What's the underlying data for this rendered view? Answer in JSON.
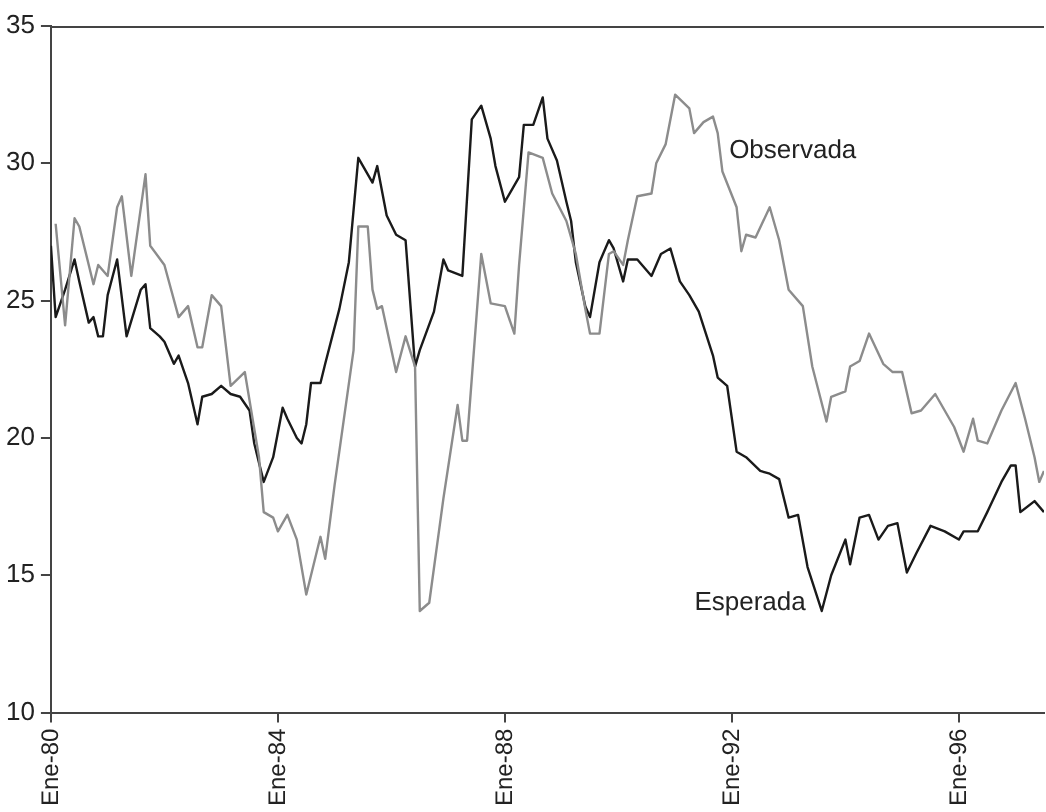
{
  "chart_data": {
    "type": "line",
    "xlim": [
      "1980-01",
      "1997-07"
    ],
    "xticks": [
      {
        "value": "1980-01",
        "label": "Ene-80"
      },
      {
        "value": "1984-01",
        "label": "Ene-84"
      },
      {
        "value": "1988-01",
        "label": "Ene-88"
      },
      {
        "value": "1992-01",
        "label": "Ene-92"
      },
      {
        "value": "1996-01",
        "label": "Ene-96"
      }
    ],
    "ylim": [
      10,
      35
    ],
    "yticks": [
      10,
      15,
      20,
      25,
      30,
      35
    ],
    "grid": false,
    "legend": false,
    "marker": "none",
    "line_style": "solid",
    "series": [
      {
        "name": "Observada",
        "color": "#8c8c8c",
        "x": [
          "1980-02",
          "1980-04",
          "1980-06",
          "1980-07",
          "1980-10",
          "1980-11",
          "1981-01",
          "1981-03",
          "1981-04",
          "1981-06",
          "1981-09",
          "1981-10",
          "1982-01",
          "1982-04",
          "1982-06",
          "1982-08",
          "1982-09",
          "1982-11",
          "1983-01",
          "1983-03",
          "1983-06",
          "1983-09",
          "1983-10",
          "1983-12",
          "1984-01",
          "1984-03",
          "1984-05",
          "1984-07",
          "1984-10",
          "1984-11",
          "1985-01",
          "1985-05",
          "1985-06",
          "1985-08",
          "1985-09",
          "1985-10",
          "1985-11",
          "1986-02",
          "1986-04",
          "1986-06",
          "1986-07",
          "1986-09",
          "1986-12",
          "1987-03",
          "1987-04",
          "1987-05",
          "1987-08",
          "1987-10",
          "1988-01",
          "1988-03",
          "1988-04",
          "1988-06",
          "1988-09",
          "1988-11",
          "1989-02",
          "1989-04",
          "1989-06",
          "1989-07",
          "1989-09",
          "1989-11",
          "1989-12",
          "1990-02",
          "1990-03",
          "1990-05",
          "1990-08",
          "1990-09",
          "1990-11",
          "1991-01",
          "1991-04",
          "1991-05",
          "1991-07",
          "1991-09",
          "1991-10",
          "1991-11",
          "1992-02",
          "1992-03",
          "1992-04",
          "1992-06",
          "1992-09",
          "1992-11",
          "1993-01",
          "1993-04",
          "1993-06",
          "1993-09",
          "1993-10",
          "1994-01",
          "1994-02",
          "1994-04",
          "1994-06",
          "1994-09",
          "1994-11",
          "1995-01",
          "1995-03",
          "1995-05",
          "1995-08",
          "1995-10",
          "1995-12",
          "1996-02",
          "1996-04",
          "1996-05",
          "1996-07",
          "1996-10",
          "1997-01",
          "1997-03",
          "1997-05",
          "1997-06",
          "1997-07"
        ],
        "values": [
          27.8,
          24.1,
          28.0,
          27.7,
          25.6,
          26.3,
          25.9,
          28.4,
          28.8,
          25.9,
          29.6,
          27.0,
          26.3,
          24.4,
          24.8,
          23.3,
          23.3,
          25.2,
          24.8,
          21.9,
          22.4,
          19.3,
          17.3,
          17.1,
          16.6,
          17.2,
          16.3,
          14.3,
          16.4,
          15.6,
          18.3,
          23.2,
          27.7,
          27.7,
          25.4,
          24.7,
          24.8,
          22.4,
          23.7,
          22.6,
          13.7,
          14.0,
          17.8,
          21.2,
          19.9,
          19.9,
          26.7,
          24.9,
          24.8,
          23.8,
          26.3,
          30.4,
          30.2,
          28.9,
          27.9,
          26.7,
          24.7,
          23.8,
          23.8,
          26.7,
          26.8,
          26.3,
          27.2,
          28.8,
          28.9,
          30.0,
          30.7,
          32.5,
          32.0,
          31.1,
          31.5,
          31.7,
          31.1,
          29.7,
          28.4,
          26.8,
          27.4,
          27.3,
          28.4,
          27.2,
          25.4,
          24.8,
          22.6,
          20.6,
          21.5,
          21.7,
          22.6,
          22.8,
          23.8,
          22.7,
          22.4,
          22.4,
          20.9,
          21.0,
          21.6,
          21.0,
          20.4,
          19.5,
          20.7,
          19.9,
          19.8,
          21.0,
          22.0,
          20.7,
          19.3,
          18.4,
          18.8
        ]
      },
      {
        "name": "Esperada",
        "color": "#1a1a1a",
        "x": [
          "1980-01",
          "1980-02",
          "1980-04",
          "1980-06",
          "1980-07",
          "1980-09",
          "1980-10",
          "1980-11",
          "1980-12",
          "1981-01",
          "1981-03",
          "1981-05",
          "1981-08",
          "1981-09",
          "1981-10",
          "1981-12",
          "1982-01",
          "1982-03",
          "1982-04",
          "1982-06",
          "1982-08",
          "1982-09",
          "1982-11",
          "1983-01",
          "1983-03",
          "1983-05",
          "1983-07",
          "1983-08",
          "1983-10",
          "1983-12",
          "1984-02",
          "1984-03",
          "1984-05",
          "1984-06",
          "1984-07",
          "1984-08",
          "1984-10",
          "1984-11",
          "1985-02",
          "1985-04",
          "1985-06",
          "1985-09",
          "1985-10",
          "1985-12",
          "1986-02",
          "1986-04",
          "1986-06",
          "1986-07",
          "1986-10",
          "1986-12",
          "1987-01",
          "1987-04",
          "1987-06",
          "1987-08",
          "1987-10",
          "1987-11",
          "1988-01",
          "1988-04",
          "1988-05",
          "1988-07",
          "1988-09",
          "1988-10",
          "1988-12",
          "1989-02",
          "1989-03",
          "1989-04",
          "1989-06",
          "1989-07",
          "1989-09",
          "1989-11",
          "1989-12",
          "1990-02",
          "1990-03",
          "1990-05",
          "1990-08",
          "1990-10",
          "1990-12",
          "1991-02",
          "1991-04",
          "1991-06",
          "1991-09",
          "1991-10",
          "1991-12",
          "1992-02",
          "1992-04",
          "1992-07",
          "1992-09",
          "1992-11",
          "1993-01",
          "1993-03",
          "1993-05",
          "1993-08",
          "1993-10",
          "1994-01",
          "1994-02",
          "1994-04",
          "1994-06",
          "1994-08",
          "1994-10",
          "1994-12",
          "1995-02",
          "1995-04",
          "1995-07",
          "1995-10",
          "1996-01",
          "1996-02",
          "1996-05",
          "1996-07",
          "1996-10",
          "1996-12",
          "1997-01",
          "1997-02",
          "1997-05",
          "1997-07"
        ],
        "values": [
          27.0,
          24.4,
          25.4,
          26.5,
          25.7,
          24.2,
          24.4,
          23.7,
          23.7,
          25.2,
          26.5,
          23.7,
          25.4,
          25.6,
          24.0,
          23.7,
          23.5,
          22.7,
          23.0,
          22.0,
          20.5,
          21.5,
          21.6,
          21.9,
          21.6,
          21.5,
          21.0,
          19.8,
          18.4,
          19.3,
          21.1,
          20.7,
          20.0,
          19.8,
          20.5,
          22.0,
          22.0,
          22.7,
          24.7,
          26.4,
          30.2,
          29.3,
          29.9,
          28.1,
          27.4,
          27.2,
          22.6,
          23.2,
          24.6,
          26.5,
          26.1,
          25.9,
          31.6,
          32.1,
          30.9,
          29.9,
          28.6,
          29.5,
          31.4,
          31.4,
          32.4,
          30.9,
          30.1,
          28.6,
          27.9,
          26.4,
          24.8,
          24.4,
          26.4,
          27.2,
          26.9,
          25.7,
          26.5,
          26.5,
          25.9,
          26.7,
          26.9,
          25.7,
          25.2,
          24.6,
          23.0,
          22.2,
          21.9,
          19.5,
          19.3,
          18.8,
          18.7,
          18.5,
          17.1,
          17.2,
          15.3,
          13.7,
          15.0,
          16.3,
          15.4,
          17.1,
          17.2,
          16.3,
          16.8,
          16.9,
          15.1,
          15.8,
          16.8,
          16.6,
          16.3,
          16.6,
          16.6,
          17.3,
          18.4,
          19.0,
          19.0,
          17.3,
          17.7,
          17.3
        ]
      }
    ]
  }
}
